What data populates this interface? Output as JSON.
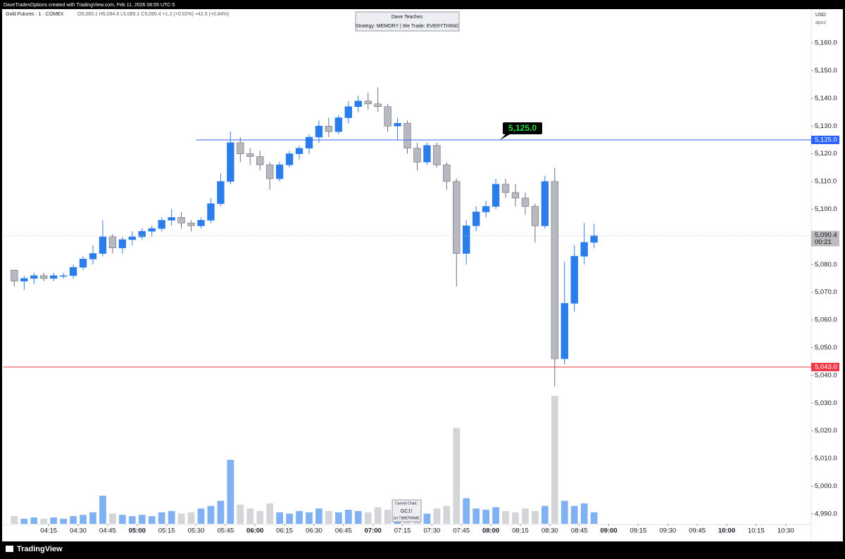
{
  "header": {
    "credit": "DaveTradesOptions created with TradingView.com, Feb 11, 2026 08:55 UTC-5",
    "brand": "TradingView"
  },
  "chart_data": {
    "type": "candlestick",
    "symbol": "Gold Futures · 1 · COMEX",
    "quote": "O5,090.1  H5,094.8  L5,089.1  C5,090.4  +1.2 (+0.02%)  +42.5 (+0.84%)",
    "title": "Dave Teaches",
    "subtitle": "Strategy: MEMORY | We Trade: EVERYTHING",
    "note": [
      "Current Chart:",
      "GC1!",
      "1m TIMEFRAME"
    ],
    "currency": "USD",
    "unit": "apoz",
    "up_color": "#2b7de9",
    "down_color": "#b7b9c0",
    "x": [
      "03:55",
      "04:00",
      "04:05",
      "04:10",
      "04:15",
      "04:20",
      "04:25",
      "04:30",
      "04:35",
      "04:40",
      "04:45",
      "04:50",
      "04:55",
      "05:00",
      "05:05",
      "05:10",
      "05:15",
      "05:20",
      "05:25",
      "05:30",
      "05:35",
      "05:40",
      "05:45",
      "05:50",
      "05:55",
      "06:00",
      "06:05",
      "06:10",
      "06:15",
      "06:20",
      "06:25",
      "06:30",
      "06:35",
      "06:40",
      "06:45",
      "06:50",
      "06:55",
      "07:00",
      "07:05",
      "07:10",
      "07:15",
      "07:20",
      "07:25",
      "07:30",
      "07:35",
      "07:40",
      "07:45",
      "07:50",
      "07:55",
      "08:00",
      "08:05",
      "08:10",
      "08:15",
      "08:20",
      "08:25",
      "08:30",
      "08:35",
      "08:40",
      "08:45",
      "08:50"
    ],
    "open": [
      5078,
      5074,
      5075,
      5076,
      5075,
      5076,
      5076,
      5079,
      5082,
      5084,
      5090,
      5086,
      5089,
      5090,
      5092,
      5093,
      5096,
      5097,
      5095,
      5094,
      5096,
      5102,
      5110,
      5124,
      5120,
      5119,
      5116,
      5111,
      5116,
      5120,
      5122,
      5126,
      5130,
      5128,
      5133,
      5137,
      5139,
      5138,
      5137,
      5130,
      5131,
      5122,
      5117,
      5123,
      5116,
      5110,
      5084,
      5094,
      5099,
      5101,
      5109,
      5106,
      5104,
      5101,
      5094,
      5110,
      5046,
      5066,
      5083,
      5088
    ],
    "high": [
      5078,
      5076,
      5077,
      5077,
      5077,
      5077,
      5080,
      5083,
      5087,
      5096,
      5091,
      5090,
      5092,
      5093,
      5094,
      5097,
      5100,
      5099,
      5096,
      5097,
      5104,
      5113,
      5128,
      5126,
      5122,
      5121,
      5117,
      5117,
      5121,
      5123,
      5127,
      5132,
      5133,
      5134,
      5139,
      5141,
      5142,
      5144,
      5138,
      5133,
      5132,
      5124,
      5124,
      5124,
      5117,
      5111,
      5096,
      5101,
      5103,
      5111,
      5111,
      5109,
      5106,
      5102,
      5112,
      5115,
      5081,
      5087,
      5095,
      5094.8
    ],
    "low": [
      5072,
      5071,
      5073,
      5074,
      5074,
      5075,
      5075,
      5078,
      5080,
      5083,
      5084,
      5084,
      5087,
      5089,
      5090,
      5092,
      5094,
      5093,
      5092,
      5093,
      5095,
      5101,
      5109,
      5117,
      5116,
      5114,
      5107,
      5110,
      5115,
      5118,
      5120,
      5124,
      5126,
      5127,
      5131,
      5135,
      5136,
      5135,
      5128,
      5125,
      5120,
      5114,
      5116,
      5115,
      5107,
      5072,
      5080,
      5092,
      5097,
      5100,
      5104,
      5101,
      5098,
      5088,
      5093,
      5036,
      5044,
      5063,
      5080,
      5086
    ],
    "close": [
      5074,
      5075,
      5076,
      5075,
      5076,
      5076,
      5079,
      5082,
      5084,
      5090,
      5086,
      5089,
      5090,
      5092,
      5093,
      5096,
      5097,
      5095,
      5094,
      5096,
      5102,
      5110,
      5124,
      5120,
      5119,
      5116,
      5111,
      5116,
      5120,
      5122,
      5126,
      5130,
      5128,
      5133,
      5137,
      5139,
      5138,
      5137,
      5130,
      5131,
      5122,
      5117,
      5123,
      5116,
      5110,
      5084,
      5094,
      5099,
      5101,
      5109,
      5106,
      5104,
      5101,
      5094,
      5110,
      5046,
      5066,
      5083,
      5088,
      5090.4
    ],
    "volume": [
      6,
      4,
      5,
      4,
      5,
      4,
      6,
      7,
      9,
      22,
      8,
      7,
      6,
      7,
      6,
      9,
      10,
      8,
      9,
      12,
      14,
      18,
      50,
      15,
      12,
      10,
      16,
      9,
      8,
      10,
      9,
      12,
      10,
      9,
      11,
      10,
      9,
      13,
      11,
      10,
      9,
      10,
      8,
      12,
      14,
      75,
      20,
      12,
      11,
      13,
      10,
      9,
      12,
      10,
      14,
      100,
      18,
      14,
      16,
      9
    ],
    "vlim": [
      0,
      100
    ],
    "xlim": [
      "03:52",
      "10:43"
    ],
    "xticks": [
      "04:15",
      "04:30",
      "04:45",
      "05:00",
      "05:15",
      "05:30",
      "05:45",
      "06:00",
      "06:15",
      "06:30",
      "06:45",
      "07:00",
      "07:15",
      "07:30",
      "07:45",
      "08:00",
      "08:15",
      "08:30",
      "08:45",
      "09:00",
      "09:15",
      "09:30",
      "09:45",
      "10:00",
      "10:15",
      "10:30"
    ],
    "ylim": [
      4986.4,
      5171.7
    ],
    "yticks": [
      {
        "value": 4990,
        "label": "4,990.0"
      },
      {
        "value": 5000,
        "label": "5,000.0"
      },
      {
        "value": 5010,
        "label": "5,010.0"
      },
      {
        "value": 5020,
        "label": "5,020.0"
      },
      {
        "value": 5030,
        "label": "5,030.0"
      },
      {
        "value": 5040,
        "label": "5,040.0"
      },
      {
        "value": 5050,
        "label": "5,050.0"
      },
      {
        "value": 5060,
        "label": "5,060.0"
      },
      {
        "value": 5070,
        "label": "5,070.0"
      },
      {
        "value": 5080,
        "label": "5,080.0"
      },
      {
        "value": 5090,
        "label": "5,090.0"
      },
      {
        "value": 5100,
        "label": "5,100.0"
      },
      {
        "value": 5110,
        "label": "5,110.0"
      },
      {
        "value": 5120,
        "label": "5,120.0"
      },
      {
        "value": 5130,
        "label": "5,130.0"
      },
      {
        "value": 5140,
        "label": "5,140.0"
      },
      {
        "value": 5150,
        "label": "5,150.0"
      },
      {
        "value": 5160,
        "label": "5,160.0"
      }
    ],
    "levels": [
      {
        "value": 5125,
        "label": "5,125.0",
        "color": "#2962ff",
        "from": "05:30",
        "callout": "5,125.0"
      },
      {
        "value": 5043,
        "label": "5,043.0",
        "color": "#f23645"
      }
    ],
    "last_price": {
      "value": 5090.4,
      "label": "5,090.4",
      "countdown": "00:21"
    }
  }
}
